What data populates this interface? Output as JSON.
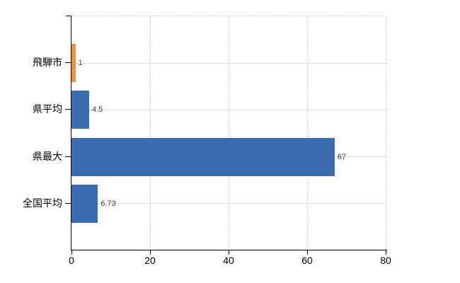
{
  "chart": {
    "background_color": "#ffffff",
    "axis_color": "#000000",
    "horizontal_gridline_color": "#dbe1db",
    "vertical_gridline_color": "#d9d2d2",
    "value_label_color": "#3f3f3f",
    "tick_label_color": "#000000",
    "highlight_bar_color": "#ec9040",
    "default_bar_color": "#3c6cb0"
  },
  "chart_data": {
    "type": "bar",
    "orientation": "horizontal",
    "categories": [
      "飛騨市",
      "県平均",
      "県最大",
      "全国平均"
    ],
    "values": [
      1,
      4.5,
      67,
      6.73
    ],
    "value_labels": [
      "1",
      "4.5",
      "67",
      "6.73"
    ],
    "bar_colors": [
      "#ec9040",
      "#3c6cb0",
      "#3c6cb0",
      "#3c6cb0"
    ],
    "xlim": [
      0,
      80
    ],
    "x_tick_values": [
      0,
      20,
      40,
      60,
      80
    ],
    "x_tick_labels": [
      "0",
      "20",
      "40",
      "60",
      "80"
    ],
    "grid": {
      "horizontal": "solid",
      "vertical": "dashed"
    },
    "legend": "none"
  }
}
